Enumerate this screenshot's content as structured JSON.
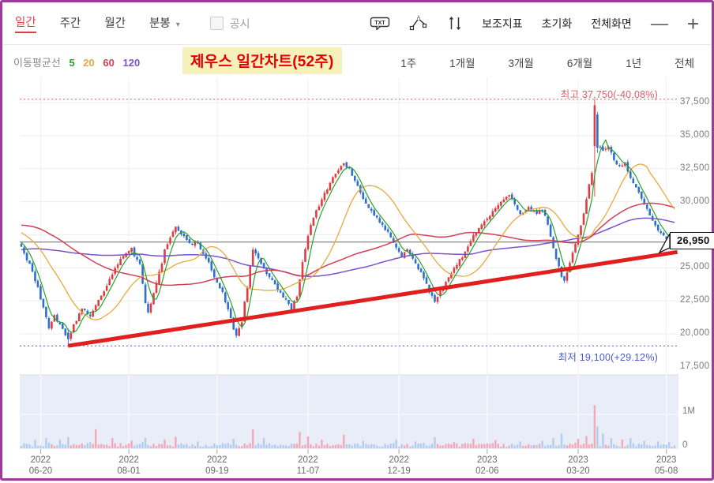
{
  "window": {
    "border_color": "#9c3a9e"
  },
  "toolbar": {
    "active_color": "#e23b4e",
    "tabs": [
      {
        "label": "일간",
        "active": true
      },
      {
        "label": "주간",
        "active": false
      },
      {
        "label": "월간",
        "active": false
      },
      {
        "label": "분봉",
        "active": false,
        "caret": "▾"
      }
    ],
    "checkbox": {
      "label": "공시",
      "checked": false
    },
    "icon_buttons": [
      {
        "name": "txt-export-icon",
        "glyph_text": "TXT"
      },
      {
        "name": "trendline-tool-icon"
      },
      {
        "name": "candle-scale-icon"
      }
    ],
    "buttons": [
      "보조지표",
      "초기화",
      "전체화면"
    ],
    "zoom_out_label": "—",
    "zoom_in_label": "+"
  },
  "legend": {
    "label": "이동평균선",
    "items": [
      {
        "period": "5",
        "color": "#28a12e"
      },
      {
        "period": "20",
        "color": "#e8a93c"
      },
      {
        "period": "60",
        "color": "#d23f56"
      },
      {
        "period": "120",
        "color": "#7b52c9"
      }
    ]
  },
  "title": {
    "text": "제우스 일간차트(52주)",
    "color": "#e60000",
    "bg": "#f6f0bc"
  },
  "range_buttons": [
    "1주",
    "1개월",
    "3개월",
    "6개월",
    "1년",
    "전체"
  ],
  "volume_axis": {
    "labels": [
      {
        "text": "1M",
        "value": 1000000
      },
      {
        "text": "0",
        "value": 0
      }
    ]
  },
  "chart_data": {
    "type": "candlestick",
    "title": "제우스 일간차트(52주)",
    "days": 238,
    "price_axis": {
      "min": 17500,
      "max": 37500
    },
    "y_ticks": [
      {
        "label": "37,500",
        "value": 37500
      },
      {
        "label": "35,000",
        "value": 35000
      },
      {
        "label": "32,500",
        "value": 32500
      },
      {
        "label": "30,000",
        "value": 30000
      },
      {
        "label": "25,000",
        "value": 25000
      },
      {
        "label": "22,500",
        "value": 22500
      },
      {
        "label": "20,000",
        "value": 20000
      },
      {
        "label": "17,500",
        "value": 17500
      }
    ],
    "y_gridlines": [
      37500,
      35000,
      32500,
      30000,
      27500,
      25000,
      22500,
      20000
    ],
    "x_ticks": [
      {
        "day": 7,
        "year": "2022",
        "date": "06-20"
      },
      {
        "day": 39,
        "year": "2022",
        "date": "08-01"
      },
      {
        "day": 71,
        "year": "2022",
        "date": "09-19"
      },
      {
        "day": 104,
        "year": "2022",
        "date": "11-07"
      },
      {
        "day": 137,
        "year": "2022",
        "date": "12-19"
      },
      {
        "day": 169,
        "year": "2023",
        "date": "02-06"
      },
      {
        "day": 202,
        "year": "2023",
        "date": "03-20"
      },
      {
        "day": 234,
        "year": "2023",
        "date": "05-08"
      }
    ],
    "high_marker": {
      "label": "최고 37,750(-40.08%)",
      "value": 37750,
      "color": "#e05a6e"
    },
    "low_marker": {
      "label": "최저 19,100(+29.12%)",
      "value": 19100,
      "color": "#4a5bc4"
    },
    "last_price": {
      "label": "26,950",
      "value": 26950,
      "line_color": "#7a7a7a"
    },
    "candle_up_color": "#e13b42",
    "candle_down_color": "#2e6fce",
    "volume_up_color": "#f5a9b6",
    "volume_down_color": "#b3cdf0",
    "volume_pane_bg": "#e9edf8",
    "volume_grid_color": "#ffffff",
    "grid_color": "#ededed",
    "moving_averages": [
      {
        "period": 5,
        "color": "#28a12e",
        "width": 1.2
      },
      {
        "period": 20,
        "color": "#e8a93c",
        "width": 1.3
      },
      {
        "period": 60,
        "color": "#d23f56",
        "width": 1.5
      },
      {
        "period": 120,
        "color": "#7b52c9",
        "width": 1.5
      }
    ],
    "trendline": {
      "from_day": 17,
      "from_price": 19100,
      "to_day": 238,
      "to_price": 26200,
      "color": "#e01f1f",
      "width": 5
    },
    "price_path_anchors": [
      [
        0,
        26700
      ],
      [
        3,
        25200
      ],
      [
        6,
        23500
      ],
      [
        9,
        21200
      ],
      [
        10,
        20300
      ],
      [
        12,
        21400
      ],
      [
        14,
        20700
      ],
      [
        16,
        19900
      ],
      [
        17,
        19400
      ],
      [
        19,
        20700
      ],
      [
        22,
        21900
      ],
      [
        25,
        21400
      ],
      [
        28,
        22600
      ],
      [
        31,
        23700
      ],
      [
        34,
        24900
      ],
      [
        37,
        25900
      ],
      [
        40,
        26400
      ],
      [
        43,
        25200
      ],
      [
        45,
        22400
      ],
      [
        46,
        21700
      ],
      [
        48,
        23100
      ],
      [
        50,
        24600
      ],
      [
        52,
        26300
      ],
      [
        54,
        27300
      ],
      [
        56,
        28200
      ],
      [
        58,
        27600
      ],
      [
        61,
        26800
      ],
      [
        64,
        26900
      ],
      [
        67,
        25800
      ],
      [
        70,
        24300
      ],
      [
        73,
        23200
      ],
      [
        75,
        21800
      ],
      [
        77,
        20400
      ],
      [
        78,
        20000
      ],
      [
        80,
        21000
      ],
      [
        82,
        23600
      ],
      [
        84,
        26400
      ],
      [
        85,
        26000
      ],
      [
        87,
        25200
      ],
      [
        90,
        24300
      ],
      [
        93,
        23400
      ],
      [
        96,
        22600
      ],
      [
        98,
        21900
      ],
      [
        100,
        22900
      ],
      [
        101,
        24200
      ],
      [
        103,
        26500
      ],
      [
        105,
        28300
      ],
      [
        107,
        29300
      ],
      [
        109,
        30200
      ],
      [
        111,
        30900
      ],
      [
        113,
        31800
      ],
      [
        115,
        32400
      ],
      [
        117,
        32900
      ],
      [
        119,
        32400
      ],
      [
        121,
        31600
      ],
      [
        124,
        30300
      ],
      [
        127,
        29300
      ],
      [
        130,
        28500
      ],
      [
        133,
        27600
      ],
      [
        136,
        26600
      ],
      [
        138,
        25900
      ],
      [
        140,
        26400
      ],
      [
        143,
        25300
      ],
      [
        146,
        24200
      ],
      [
        148,
        23200
      ],
      [
        150,
        22500
      ],
      [
        152,
        23300
      ],
      [
        155,
        24400
      ],
      [
        158,
        25300
      ],
      [
        161,
        26200
      ],
      [
        164,
        27400
      ],
      [
        166,
        28000
      ],
      [
        169,
        28700
      ],
      [
        172,
        29400
      ],
      [
        175,
        30100
      ],
      [
        177,
        30500
      ],
      [
        179,
        29800
      ],
      [
        181,
        29100
      ],
      [
        184,
        29500
      ],
      [
        187,
        29100
      ],
      [
        189,
        29400
      ],
      [
        191,
        28300
      ],
      [
        193,
        26500
      ],
      [
        195,
        25000
      ],
      [
        197,
        23900
      ],
      [
        199,
        25300
      ],
      [
        201,
        26800
      ],
      [
        203,
        28300
      ],
      [
        205,
        30100
      ],
      [
        207,
        32300
      ],
      [
        208,
        36300
      ],
      [
        209,
        34300
      ],
      [
        211,
        33800
      ],
      [
        213,
        34300
      ],
      [
        215,
        33200
      ],
      [
        217,
        32600
      ],
      [
        219,
        32900
      ],
      [
        221,
        31800
      ],
      [
        223,
        31000
      ],
      [
        225,
        30200
      ],
      [
        227,
        29400
      ],
      [
        229,
        28600
      ],
      [
        231,
        27900
      ],
      [
        233,
        27400
      ],
      [
        235,
        26700
      ],
      [
        237,
        26950
      ]
    ],
    "prehistory_anchors": [
      [
        -120,
        23500
      ],
      [
        -90,
        24000
      ],
      [
        -60,
        26500
      ],
      [
        -40,
        29300
      ],
      [
        -20,
        28800
      ],
      [
        -10,
        27600
      ],
      [
        -1,
        26900
      ]
    ],
    "volume_spikes": {
      "5": 250000,
      "9": 300000,
      "14": 260000,
      "17": 330000,
      "25": 180000,
      "27": 560000,
      "33": 300000,
      "40": 220000,
      "45": 310000,
      "52": 260000,
      "56": 340000,
      "64": 200000,
      "77": 280000,
      "84": 560000,
      "88": 300000,
      "101": 480000,
      "104": 350000,
      "109": 260000,
      "117": 400000,
      "124": 220000,
      "136": 260000,
      "143": 200000,
      "150": 330000,
      "157": 180000,
      "164": 280000,
      "172": 240000,
      "181": 200000,
      "189": 220000,
      "193": 300000,
      "196": 430000,
      "202": 280000,
      "205": 360000,
      "208": 1270000,
      "209": 640000,
      "211": 430000,
      "214": 300000,
      "218": 260000,
      "221": 300000,
      "226": 220000,
      "231": 200000,
      "235": 180000
    }
  }
}
